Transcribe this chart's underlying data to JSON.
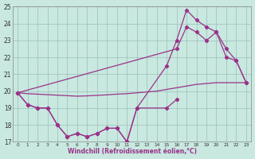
{
  "bg_color": "#c8e8e0",
  "line_color": "#993388",
  "xlabel": "Windchill (Refroidissement éolien,°C)",
  "xlim": [
    -0.5,
    23.5
  ],
  "ylim": [
    17,
    25
  ],
  "yticks": [
    17,
    18,
    19,
    20,
    21,
    22,
    23,
    24,
    25
  ],
  "xticks": [
    0,
    1,
    2,
    3,
    4,
    5,
    6,
    7,
    8,
    9,
    10,
    11,
    12,
    13,
    14,
    15,
    16,
    17,
    18,
    19,
    20,
    21,
    22,
    23
  ],
  "line1_x": [
    0,
    1,
    2,
    3,
    4,
    5,
    6,
    7,
    8,
    9,
    10,
    11,
    12,
    15,
    16
  ],
  "line1_y": [
    19.9,
    19.2,
    19.0,
    19.0,
    18.0,
    17.3,
    17.5,
    17.3,
    17.5,
    17.8,
    17.8,
    17.0,
    19.0,
    19.0,
    19.5
  ],
  "line2_x": [
    0,
    1,
    2,
    3,
    4,
    5,
    6,
    7,
    8,
    9,
    10,
    11,
    12,
    15,
    16,
    17,
    18,
    19,
    20,
    21,
    22,
    23
  ],
  "line2_y": [
    19.9,
    19.2,
    19.0,
    19.0,
    18.0,
    17.3,
    17.5,
    17.3,
    17.5,
    17.8,
    17.8,
    17.0,
    19.0,
    21.5,
    23.0,
    24.8,
    24.2,
    23.8,
    23.5,
    22.0,
    21.8,
    20.5
  ],
  "line3_x": [
    0,
    16,
    17,
    18,
    19,
    20,
    21,
    22,
    23
  ],
  "line3_y": [
    19.9,
    22.5,
    23.8,
    23.5,
    23.0,
    23.5,
    22.5,
    21.8,
    20.5
  ],
  "line4_x": [
    0,
    1,
    2,
    3,
    4,
    5,
    6,
    7,
    8,
    9,
    10,
    11,
    12,
    13,
    14,
    15,
    16,
    17,
    18,
    19,
    20,
    21,
    22,
    23
  ],
  "line4_y": [
    19.9,
    19.85,
    19.82,
    19.79,
    19.76,
    19.73,
    19.7,
    19.72,
    19.75,
    19.78,
    19.82,
    19.85,
    19.9,
    19.95,
    20.0,
    20.1,
    20.2,
    20.3,
    20.4,
    20.45,
    20.5,
    20.5,
    20.5,
    20.5
  ]
}
